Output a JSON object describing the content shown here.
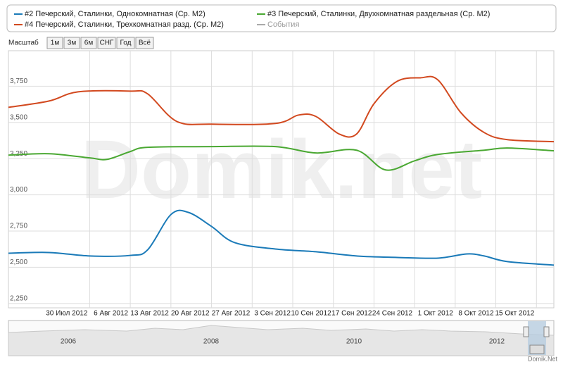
{
  "chart_data": {
    "type": "line",
    "watermark": "Domik.net",
    "credit": "Domik.Net",
    "zoom_label": "Масштаб",
    "zoom_buttons": [
      "1м",
      "3м",
      "6м",
      "СНГ",
      "Год",
      "Всё"
    ],
    "navigator_years": [
      "2006",
      "2008",
      "2010",
      "2012"
    ],
    "xlim": [
      "2012-07-16",
      "2012-10-18"
    ],
    "xticks": [
      {
        "value": "2012-07-30",
        "label": "30 Июл 2012"
      },
      {
        "value": "2012-08-06",
        "label": "6 Авг 2012"
      },
      {
        "value": "2012-08-13",
        "label": "13 Авг 2012"
      },
      {
        "value": "2012-08-20",
        "label": "20 Авг 2012"
      },
      {
        "value": "2012-08-27",
        "label": "27 Авг 2012"
      },
      {
        "value": "2012-09-03",
        "label": "3 Сен 2012"
      },
      {
        "value": "2012-09-10",
        "label": "10 Сен 2012"
      },
      {
        "value": "2012-09-17",
        "label": "17 Сен 2012"
      },
      {
        "value": "2012-09-24",
        "label": "24 Сен 2012"
      },
      {
        "value": "2012-10-01",
        "label": "1 Окт 2012"
      },
      {
        "value": "2012-10-08",
        "label": "8 Окт 2012"
      },
      {
        "value": "2012-10-15",
        "label": "15 Окт 2012"
      }
    ],
    "ylim": [
      2220,
      3995
    ],
    "yticks": [
      {
        "value": 3750,
        "label": "3,750"
      },
      {
        "value": 3500,
        "label": "3,500"
      },
      {
        "value": 3250,
        "label": "3,250"
      },
      {
        "value": 3000,
        "label": "3,000"
      },
      {
        "value": 2750,
        "label": "2,750"
      },
      {
        "value": 2500,
        "label": "2,500"
      },
      {
        "value": 2250,
        "label": "2,250"
      }
    ],
    "grid": true,
    "series": [
      {
        "name": "#2 Печерский, Сталинки, Однокомнатная (Ср. М2)",
        "color": "#1a7ab8",
        "x": [
          "2012-07-16",
          "2012-07-23",
          "2012-07-30",
          "2012-08-06",
          "2012-08-09",
          "2012-08-13",
          "2012-08-16",
          "2012-08-20",
          "2012-08-24",
          "2012-08-31",
          "2012-09-07",
          "2012-09-14",
          "2012-09-21",
          "2012-09-28",
          "2012-10-03",
          "2012-10-06",
          "2012-10-10",
          "2012-10-18"
        ],
        "values": [
          2597,
          2602,
          2578,
          2582,
          2621,
          2864,
          2879,
          2782,
          2670,
          2626,
          2607,
          2578,
          2568,
          2563,
          2592,
          2578,
          2539,
          2515
        ]
      },
      {
        "name": "#3 Печерский, Сталинки, Двухкомнатная раздельная (Ср. М2)",
        "color": "#4aa832",
        "x": [
          "2012-07-16",
          "2012-07-23",
          "2012-07-30",
          "2012-08-02",
          "2012-08-06",
          "2012-08-09",
          "2012-08-20",
          "2012-08-31",
          "2012-09-07",
          "2012-09-14",
          "2012-09-19",
          "2012-09-24",
          "2012-09-28",
          "2012-10-06",
          "2012-10-10",
          "2012-10-18"
        ],
        "values": [
          3274,
          3284,
          3255,
          3245,
          3299,
          3328,
          3333,
          3333,
          3289,
          3308,
          3172,
          3235,
          3279,
          3308,
          3323,
          3304
        ]
      },
      {
        "name": "#4 Печерский, Сталинки, Трехкомнатная разд. (Ср. М2)",
        "color": "#d2491f",
        "x": [
          "2012-07-16",
          "2012-07-23",
          "2012-07-28",
          "2012-08-06",
          "2012-08-09",
          "2012-08-14",
          "2012-08-20",
          "2012-08-31",
          "2012-09-04",
          "2012-09-07",
          "2012-09-11",
          "2012-09-14",
          "2012-09-17",
          "2012-09-21",
          "2012-09-25",
          "2012-09-28",
          "2012-10-02",
          "2012-10-06",
          "2012-10-10",
          "2012-10-18"
        ],
        "values": [
          3604,
          3648,
          3711,
          3716,
          3697,
          3507,
          3488,
          3493,
          3551,
          3541,
          3420,
          3420,
          3629,
          3784,
          3808,
          3794,
          3566,
          3430,
          3381,
          3367
        ]
      },
      {
        "name": "События",
        "color": "#aaaaaa",
        "x": [],
        "values": []
      }
    ]
  }
}
